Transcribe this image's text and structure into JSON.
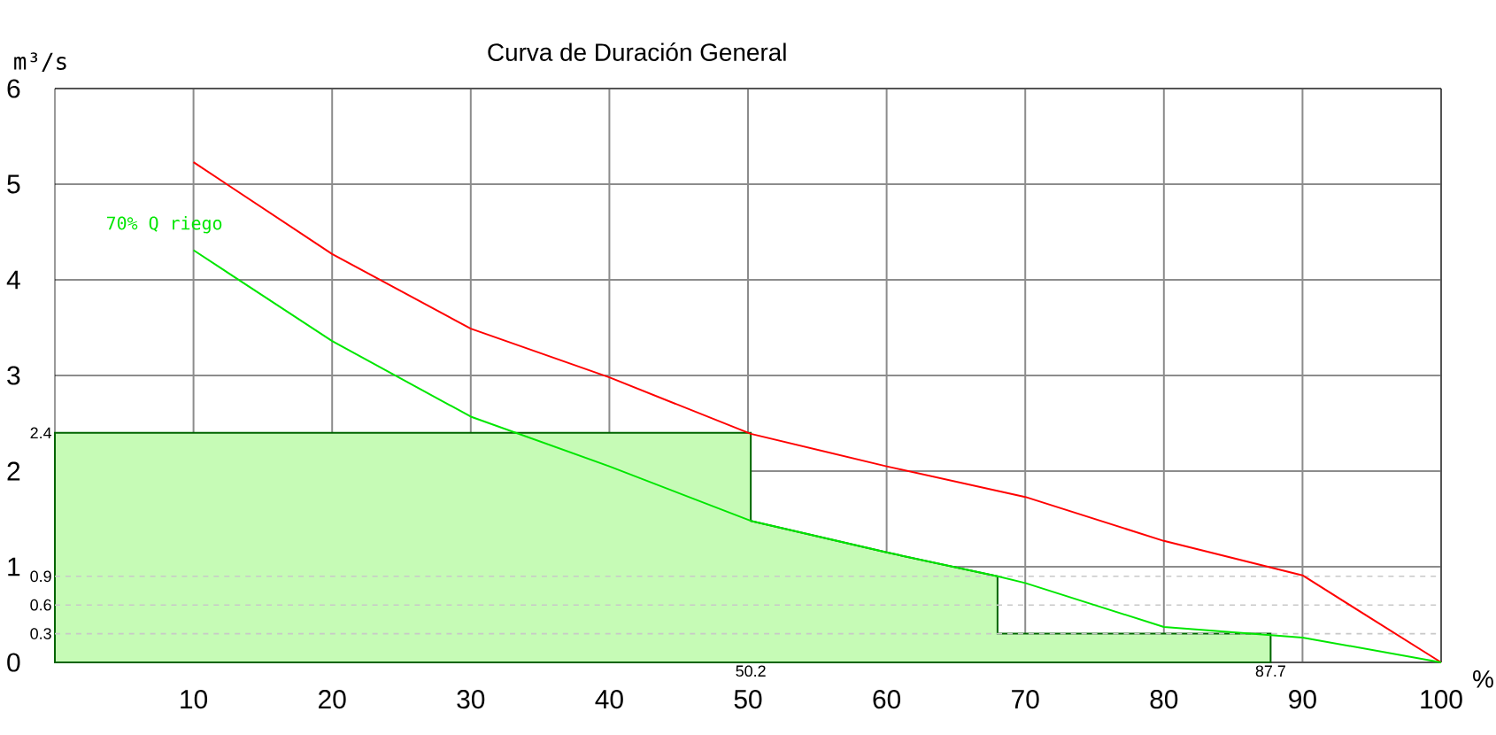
{
  "chart_data": {
    "type": "line",
    "title": "Curva de Duración General",
    "xlabel": "%",
    "ylabel": "m³/s",
    "xlim": [
      0,
      100
    ],
    "ylim": [
      0,
      6
    ],
    "xticks": [
      10,
      20,
      30,
      40,
      50,
      60,
      70,
      80,
      90,
      100
    ],
    "yticks": [
      0,
      1,
      2,
      3,
      4,
      5,
      6
    ],
    "grid": true,
    "series": [
      {
        "type": "area",
        "color": "#c6fbb6",
        "x": [
          0,
          50.2,
          50.2,
          60,
          68,
          68,
          87.7,
          87.7
        ],
        "values": [
          2.4,
          2.4,
          1.48,
          1.15,
          0.9,
          0.3,
          0.3,
          0
        ]
      },
      {
        "color": "#ff0000",
        "x": [
          10,
          20,
          30,
          40,
          50.2,
          60,
          70,
          80,
          90,
          100
        ],
        "values": [
          5.23,
          4.27,
          3.49,
          2.98,
          2.39,
          2.05,
          1.73,
          1.27,
          0.91,
          0
        ]
      },
      {
        "name": "70% Q riego",
        "color": "#00e600",
        "x": [
          10,
          20,
          30,
          40,
          50.2,
          60,
          68,
          70,
          80,
          90,
          100
        ],
        "values": [
          4.31,
          3.36,
          2.57,
          2.05,
          1.48,
          1.15,
          0.9,
          0.83,
          0.37,
          0.26,
          0
        ]
      }
    ],
    "ref_lines": [
      {
        "axis": "y",
        "value": 0.3,
        "label": "0.3",
        "color": "#c8c8c8",
        "line_style": "dashed"
      },
      {
        "axis": "y",
        "value": 0.6,
        "label": "0.6",
        "color": "#c8c8c8",
        "line_style": "dashed"
      },
      {
        "axis": "y",
        "value": 0.9,
        "label": "0.9",
        "color": "#c8c8c8",
        "line_style": "dashed"
      }
    ],
    "annotations": [
      {
        "text": "2.4",
        "x": 0,
        "y": 2.4
      },
      {
        "text": "50.2",
        "x": 50.2,
        "y": 0
      },
      {
        "text": "87.7",
        "x": 87.7,
        "y": 0
      }
    ]
  }
}
